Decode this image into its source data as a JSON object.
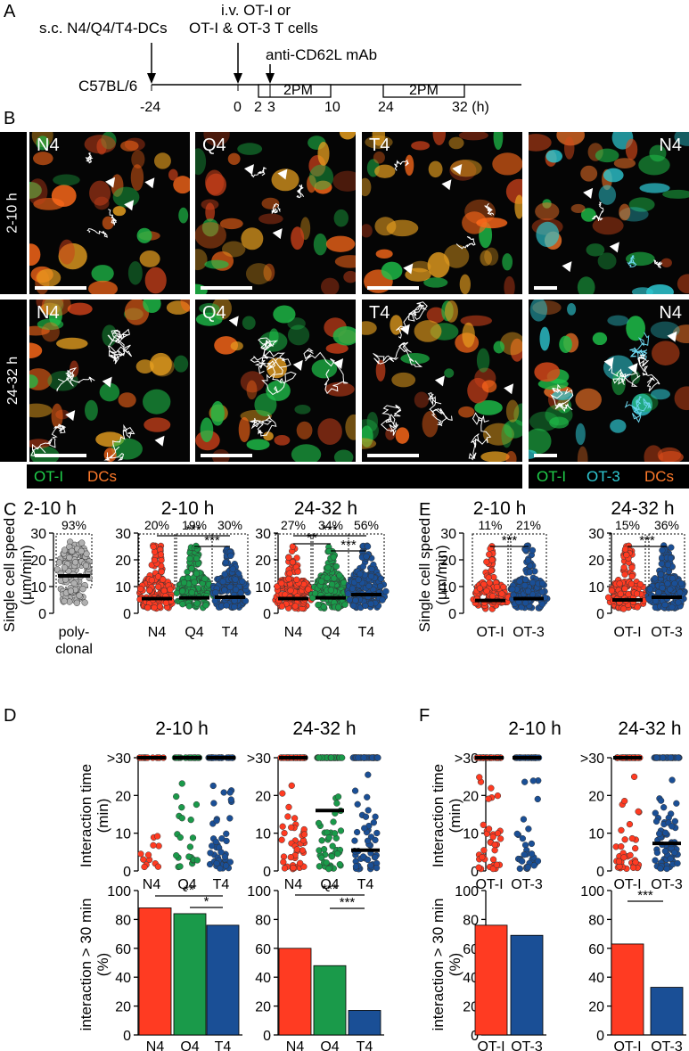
{
  "panelA": {
    "letter": "A",
    "step1": "s.c. N4/Q4/T4-DCs",
    "step2a": "i.v. OT-I or",
    "step2b": "OT-I & OT-3 T cells",
    "step3": "anti-CD62L mAb",
    "mouse": "C57BL/6",
    "ticks": [
      "-24",
      "0",
      "2",
      "3",
      "10",
      "24",
      "32 (h)"
    ],
    "box_label": "2PM"
  },
  "panelB": {
    "letter": "B",
    "row1": "2-10 h",
    "row2": "24-32 h",
    "tiles": [
      "N4",
      "Q4",
      "T4",
      "N4"
    ],
    "legend_left": [
      "OT-I",
      "DCs"
    ],
    "legend_right": [
      "OT-I",
      "OT-3",
      "DCs"
    ]
  },
  "colors": {
    "red": "#ff3b22",
    "green": "#1a9a4a",
    "blue": "#1a4f96",
    "grey": "#b0b0b0",
    "otI": "#1fcf4a",
    "ot3": "#2ec9d3",
    "dc": "#ff7a2a"
  },
  "panelC": {
    "letter": "C",
    "ylabel": "Single cell speed",
    "yunit": "(μm/min)",
    "chart_data": [
      {
        "type": "scatter",
        "title": "2-10 h",
        "categories": [
          "poly-clonal"
        ],
        "medians": [
          14
        ],
        "percent_labels": [
          "93%"
        ],
        "ylim": [
          0,
          30
        ],
        "yticks": [
          "0",
          "10",
          "20",
          "30"
        ]
      },
      {
        "type": "scatter",
        "title": "2-10 h",
        "categories": [
          "N4",
          "Q4",
          "T4"
        ],
        "medians": [
          5.5,
          5.8,
          6.0
        ],
        "percent_labels": [
          "20%",
          "19%",
          "30%"
        ],
        "significance": [
          "***",
          "***"
        ],
        "ylim": [
          0,
          30
        ],
        "yticks": [
          "0",
          "10",
          "20",
          "30"
        ]
      },
      {
        "type": "scatter",
        "title": "24-32 h",
        "categories": [
          "N4",
          "Q4",
          "T4"
        ],
        "medians": [
          5.5,
          5.8,
          7.0
        ],
        "percent_labels": [
          "27%",
          "34%",
          "56%"
        ],
        "significance": [
          "**",
          "***",
          "***"
        ],
        "ylim": [
          0,
          30
        ],
        "yticks": [
          "0",
          "10",
          "20",
          "30"
        ]
      }
    ]
  },
  "panelE": {
    "letter": "E",
    "chart_data": [
      {
        "type": "scatter",
        "title": "2-10 h",
        "categories": [
          "OT-I",
          "OT-3"
        ],
        "medians": [
          4.8,
          5.5
        ],
        "percent_labels": [
          "11%",
          "21%"
        ],
        "significance": [
          "***"
        ],
        "ylim": [
          0,
          30
        ]
      },
      {
        "type": "scatter",
        "title": "24-32 h",
        "categories": [
          "OT-I",
          "OT-3"
        ],
        "medians": [
          5.0,
          6.0
        ],
        "percent_labels": [
          "15%",
          "36%"
        ],
        "significance": [
          "***"
        ],
        "ylim": [
          0,
          30
        ]
      }
    ]
  },
  "panelD": {
    "letter": "D",
    "ylabel": "Interaction time",
    "yunit": "(min)",
    "top_tick": ">30",
    "chart_data": [
      {
        "type": "scatter",
        "title": "2-10 h",
        "categories": [
          "N4",
          "Q4",
          "T4"
        ],
        "medians": [
          30,
          30,
          30
        ],
        "ylim": [
          0,
          30
        ]
      },
      {
        "type": "scatter",
        "title": "24-32 h",
        "categories": [
          "N4",
          "Q4",
          "T4"
        ],
        "medians": [
          30,
          16,
          5.5
        ],
        "ylim": [
          0,
          30
        ]
      }
    ],
    "bar_ylabel": "interaction > 30 min",
    "bar_yunit": "(%)",
    "bar_chart_data": [
      {
        "type": "bar",
        "categories": [
          "N4",
          "Q4",
          "T4"
        ],
        "values": [
          88,
          84,
          76
        ],
        "significance": [
          "**",
          "*"
        ],
        "ylim": [
          0,
          100
        ],
        "yticks": [
          "0",
          "20",
          "40",
          "60",
          "80",
          "100"
        ]
      },
      {
        "type": "bar",
        "categories": [
          "N4",
          "Q4",
          "T4"
        ],
        "values": [
          60,
          48,
          17
        ],
        "significance": [
          "***",
          "***"
        ],
        "ylim": [
          0,
          100
        ],
        "yticks": [
          "0",
          "20",
          "40",
          "60",
          "80",
          "100"
        ]
      }
    ]
  },
  "panelF": {
    "letter": "F",
    "chart_data": [
      {
        "type": "scatter",
        "title": "2-10 h",
        "categories": [
          "OT-I",
          "OT-3"
        ],
        "medians": [
          30,
          30
        ],
        "ylim": [
          0,
          30
        ]
      },
      {
        "type": "scatter",
        "title": "24-32 h",
        "categories": [
          "OT-I",
          "OT-3"
        ],
        "medians": [
          30,
          7.3
        ],
        "ylim": [
          0,
          30
        ]
      }
    ],
    "bar_chart_data": [
      {
        "type": "bar",
        "categories": [
          "OT-I",
          "OT-3"
        ],
        "values": [
          76,
          69
        ],
        "significance": [],
        "ylim": [
          0,
          100
        ]
      },
      {
        "type": "bar",
        "categories": [
          "OT-I",
          "OT-3"
        ],
        "values": [
          63,
          33
        ],
        "significance": [
          "***"
        ],
        "ylim": [
          0,
          100
        ]
      }
    ]
  }
}
